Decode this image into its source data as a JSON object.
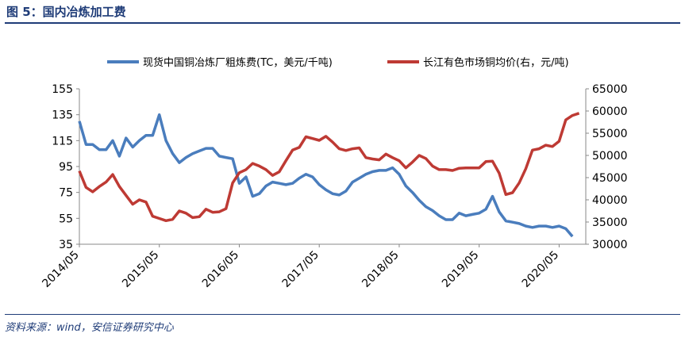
{
  "title": "图 5：国内冶炼加工费",
  "source": "资料来源：wind，安信证券研究中心",
  "chart_data": {
    "type": "line",
    "legend_position": "top",
    "grid": false,
    "x_tick_labels": [
      "2014/05",
      "2015/05",
      "2016/05",
      "2017/05",
      "2018/05",
      "2019/05",
      "2020/05"
    ],
    "x_range": [
      "2014/05",
      "2020/09"
    ],
    "y_left": {
      "min": 35,
      "max": 155,
      "ticks": [
        35,
        55,
        75,
        95,
        115,
        135,
        155
      ]
    },
    "y_right": {
      "min": 30000,
      "max": 65000,
      "ticks": [
        30000,
        35000,
        40000,
        45000,
        50000,
        55000,
        60000,
        65000
      ]
    },
    "series": [
      {
        "name": "现货中国铜冶炼厂粗炼费(TC，美元/千吨)",
        "axis": "left",
        "color": "#4a7dbd",
        "points": [
          [
            "2014/05",
            130
          ],
          [
            "2014/06",
            112
          ],
          [
            "2014/07",
            112
          ],
          [
            "2014/08",
            108
          ],
          [
            "2014/09",
            108
          ],
          [
            "2014/10",
            115
          ],
          [
            "2014/11",
            103
          ],
          [
            "2014/12",
            117
          ],
          [
            "2015/01",
            110
          ],
          [
            "2015/02",
            115
          ],
          [
            "2015/03",
            119
          ],
          [
            "2015/04",
            119
          ],
          [
            "2015/05",
            135
          ],
          [
            "2015/06",
            115
          ],
          [
            "2015/07",
            105
          ],
          [
            "2015/08",
            98
          ],
          [
            "2015/09",
            102
          ],
          [
            "2015/10",
            105
          ],
          [
            "2015/11",
            107
          ],
          [
            "2015/12",
            109
          ],
          [
            "2016/01",
            109
          ],
          [
            "2016/02",
            103
          ],
          [
            "2016/03",
            102
          ],
          [
            "2016/04",
            101
          ],
          [
            "2016/05",
            82
          ],
          [
            "2016/06",
            87
          ],
          [
            "2016/07",
            72
          ],
          [
            "2016/08",
            74
          ],
          [
            "2016/09",
            80
          ],
          [
            "2016/10",
            83
          ],
          [
            "2016/11",
            82
          ],
          [
            "2016/12",
            81
          ],
          [
            "2017/01",
            82
          ],
          [
            "2017/02",
            86
          ],
          [
            "2017/03",
            89
          ],
          [
            "2017/04",
            87
          ],
          [
            "2017/05",
            81
          ],
          [
            "2017/06",
            77
          ],
          [
            "2017/07",
            74
          ],
          [
            "2017/08",
            73
          ],
          [
            "2017/09",
            76
          ],
          [
            "2017/10",
            83
          ],
          [
            "2017/11",
            86
          ],
          [
            "2017/12",
            89
          ],
          [
            "2018/01",
            91
          ],
          [
            "2018/02",
            92
          ],
          [
            "2018/03",
            92
          ],
          [
            "2018/04",
            94
          ],
          [
            "2018/05",
            89
          ],
          [
            "2018/06",
            80
          ],
          [
            "2018/07",
            75
          ],
          [
            "2018/08",
            69
          ],
          [
            "2018/09",
            64
          ],
          [
            "2018/10",
            61
          ],
          [
            "2018/11",
            57
          ],
          [
            "2018/12",
            54
          ],
          [
            "2019/01",
            54
          ],
          [
            "2019/02",
            59
          ],
          [
            "2019/03",
            57
          ],
          [
            "2019/04",
            58
          ],
          [
            "2019/05",
            59
          ],
          [
            "2019/06",
            62
          ],
          [
            "2019/07",
            72
          ],
          [
            "2019/08",
            60
          ],
          [
            "2019/09",
            53
          ],
          [
            "2019/10",
            52
          ],
          [
            "2019/11",
            51
          ],
          [
            "2019/12",
            49
          ],
          [
            "2020/01",
            48
          ],
          [
            "2020/02",
            49
          ],
          [
            "2020/03",
            49
          ],
          [
            "2020/04",
            48
          ],
          [
            "2020/05",
            49
          ],
          [
            "2020/06",
            47
          ],
          [
            "2020/07",
            41
          ]
        ]
      },
      {
        "name": "长江有色市场铜均价(右，元/吨)",
        "axis": "right",
        "color": "#be3a34",
        "points": [
          [
            "2014/05",
            46500
          ],
          [
            "2014/06",
            42800
          ],
          [
            "2014/07",
            41800
          ],
          [
            "2014/08",
            43000
          ],
          [
            "2014/09",
            44000
          ],
          [
            "2014/10",
            45700
          ],
          [
            "2014/11",
            43000
          ],
          [
            "2014/12",
            41000
          ],
          [
            "2015/01",
            39000
          ],
          [
            "2015/02",
            40000
          ],
          [
            "2015/03",
            39500
          ],
          [
            "2015/04",
            36300
          ],
          [
            "2015/05",
            35800
          ],
          [
            "2015/06",
            35300
          ],
          [
            "2015/07",
            35600
          ],
          [
            "2015/08",
            37500
          ],
          [
            "2015/09",
            37000
          ],
          [
            "2015/10",
            36000
          ],
          [
            "2015/11",
            36200
          ],
          [
            "2015/12",
            37900
          ],
          [
            "2016/01",
            37200
          ],
          [
            "2016/02",
            37300
          ],
          [
            "2016/03",
            38000
          ],
          [
            "2016/04",
            43800
          ],
          [
            "2016/05",
            46100
          ],
          [
            "2016/06",
            46800
          ],
          [
            "2016/07",
            48200
          ],
          [
            "2016/08",
            47600
          ],
          [
            "2016/09",
            46800
          ],
          [
            "2016/10",
            45500
          ],
          [
            "2016/11",
            46300
          ],
          [
            "2016/12",
            48800
          ],
          [
            "2017/01",
            51200
          ],
          [
            "2017/02",
            51800
          ],
          [
            "2017/03",
            54200
          ],
          [
            "2017/04",
            53800
          ],
          [
            "2017/05",
            53400
          ],
          [
            "2017/06",
            54300
          ],
          [
            "2017/07",
            53000
          ],
          [
            "2017/08",
            51500
          ],
          [
            "2017/09",
            51100
          ],
          [
            "2017/10",
            51500
          ],
          [
            "2017/11",
            51700
          ],
          [
            "2017/12",
            49500
          ],
          [
            "2018/01",
            49200
          ],
          [
            "2018/02",
            49000
          ],
          [
            "2018/03",
            50300
          ],
          [
            "2018/04",
            49500
          ],
          [
            "2018/05",
            48800
          ],
          [
            "2018/06",
            47200
          ],
          [
            "2018/07",
            48500
          ],
          [
            "2018/08",
            50000
          ],
          [
            "2018/09",
            49300
          ],
          [
            "2018/10",
            47600
          ],
          [
            "2018/11",
            46800
          ],
          [
            "2018/12",
            46800
          ],
          [
            "2019/01",
            46600
          ],
          [
            "2019/02",
            47100
          ],
          [
            "2019/03",
            47200
          ],
          [
            "2019/04",
            47200
          ],
          [
            "2019/05",
            47200
          ],
          [
            "2019/06",
            48600
          ],
          [
            "2019/07",
            48700
          ],
          [
            "2019/08",
            46000
          ],
          [
            "2019/09",
            41200
          ],
          [
            "2019/10",
            41600
          ],
          [
            "2019/11",
            43800
          ],
          [
            "2019/12",
            47000
          ],
          [
            "2020/01",
            51200
          ],
          [
            "2020/02",
            51500
          ],
          [
            "2020/03",
            52300
          ],
          [
            "2020/04",
            52000
          ],
          [
            "2020/05",
            53200
          ],
          [
            "2020/06",
            58000
          ],
          [
            "2020/07",
            59000
          ],
          [
            "2020/08",
            59500
          ]
        ]
      }
    ]
  }
}
